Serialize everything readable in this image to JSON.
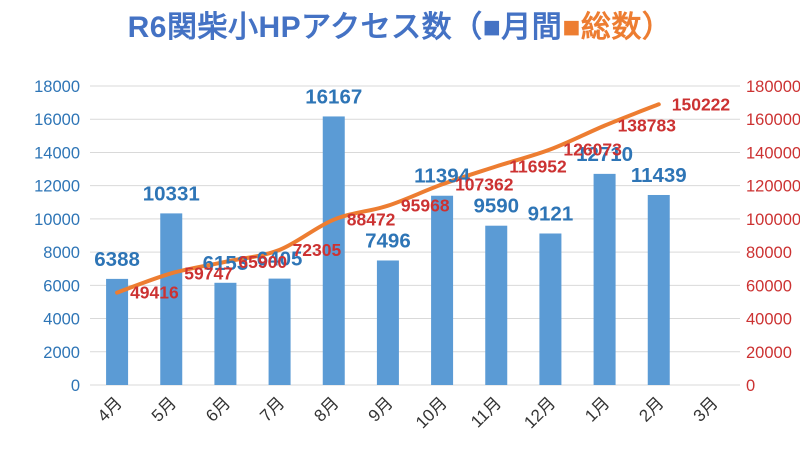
{
  "title": {
    "segments": [
      {
        "text": "R6関柴小HPアクセス数（■月間",
        "color": "#4472C4"
      },
      {
        "text": "■総数）",
        "color": "#ED7D31"
      }
    ]
  },
  "chart_data": {
    "type": "combo-bar-line",
    "title": "R6関柴小HPアクセス数（月間・総数）",
    "categories": [
      "4月",
      "5月",
      "6月",
      "7月",
      "8月",
      "9月",
      "10月",
      "11月",
      "12月",
      "1月",
      "2月",
      "3月"
    ],
    "series": [
      {
        "name": "月間",
        "type": "bar",
        "axis": "left",
        "color": "#5B9BD5",
        "label_color": "#2E75B6",
        "values": [
          6388,
          10331,
          6153,
          6405,
          16167,
          7496,
          11394,
          9590,
          9121,
          12710,
          11439,
          null
        ]
      },
      {
        "name": "総数",
        "type": "line",
        "axis": "right",
        "color": "#ED7D31",
        "label_color": "#CC3232",
        "values": [
          49416,
          59747,
          65900,
          72305,
          88472,
          95968,
          107362,
          116952,
          126073,
          138783,
          150222,
          null
        ]
      }
    ],
    "left_axis": {
      "min": 0,
      "max": 18000,
      "step": 2000,
      "label_color": "#2E75B6"
    },
    "right_axis": {
      "min": 0,
      "max": 160000,
      "step": 20000,
      "label_color": "#CC3232"
    },
    "grid": true,
    "gridline_color": "#D9D9D9",
    "category_label_color": "#333333",
    "legend_position": "in-title"
  }
}
